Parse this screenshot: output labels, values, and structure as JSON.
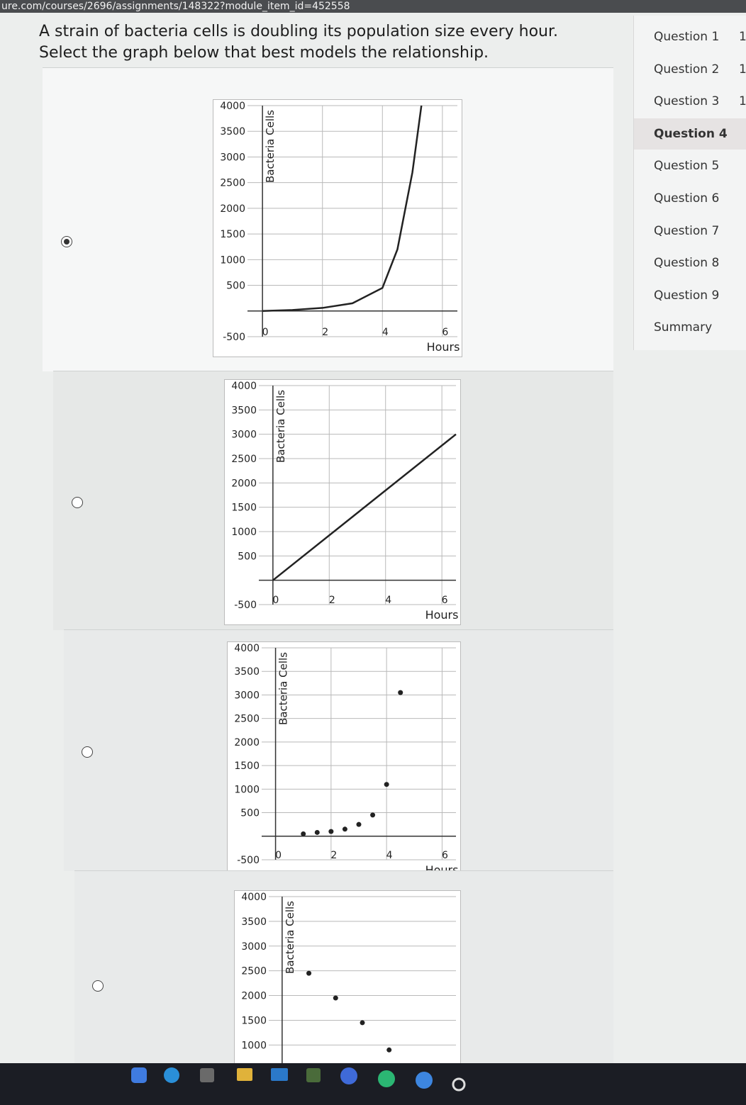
{
  "url": "ure.com/courses/2696/assignments/148322?module_item_id=452558",
  "question": "A strain of bacteria cells is doubling its population size every hour. Select the graph below that best models the relationship.",
  "sidebar": [
    {
      "label": "Question 1",
      "score": "1"
    },
    {
      "label": "Question 2",
      "score": "1"
    },
    {
      "label": "Question 3",
      "score": "1"
    },
    {
      "label": "Question 4",
      "current": true
    },
    {
      "label": "Question 5"
    },
    {
      "label": "Question 6"
    },
    {
      "label": "Question 7"
    },
    {
      "label": "Question 8"
    },
    {
      "label": "Question 9"
    },
    {
      "label": "Summary"
    }
  ],
  "options": [
    {
      "selected": true,
      "chart": {
        "type": "line",
        "x_label": "Hours",
        "y_label": "Bacteria Cells",
        "color": "#222222",
        "xlim": [
          -0.5,
          6.5
        ],
        "ylim": [
          -500,
          4000
        ],
        "xticks": [
          0,
          2,
          4,
          6
        ],
        "yticks": [
          -500,
          500,
          1000,
          1500,
          2000,
          2500,
          3000,
          3500,
          4000
        ],
        "x": [
          0,
          1,
          2,
          3,
          4,
          4.5,
          5,
          5.3
        ],
        "values": [
          0,
          20,
          60,
          150,
          450,
          1200,
          2700,
          4000
        ]
      }
    },
    {
      "selected": false,
      "chart": {
        "type": "line",
        "x_label": "Hours",
        "y_label": "Bacteria Cells",
        "color": "#222222",
        "xlim": [
          -0.5,
          6.5
        ],
        "ylim": [
          -500,
          4000
        ],
        "xticks": [
          0,
          2,
          4,
          6
        ],
        "yticks": [
          -500,
          500,
          1000,
          1500,
          2000,
          2500,
          3000,
          3500,
          4000
        ],
        "x": [
          0,
          6.5
        ],
        "values": [
          0,
          3000
        ]
      }
    },
    {
      "selected": false,
      "chart": {
        "type": "scatter",
        "x_label": "Hours",
        "y_label": "Bacteria Cells",
        "color": "#222222",
        "xlim": [
          -0.5,
          6.5
        ],
        "ylim": [
          -500,
          4000
        ],
        "xticks": [
          0,
          2,
          4,
          6
        ],
        "yticks": [
          -500,
          500,
          1000,
          1500,
          2000,
          2500,
          3000,
          3500,
          4000
        ],
        "x": [
          1,
          1.5,
          2,
          2.5,
          3,
          3.5,
          4,
          4.5
        ],
        "values": [
          50,
          80,
          100,
          150,
          250,
          450,
          1100,
          3050
        ]
      }
    },
    {
      "selected": false,
      "chart": {
        "type": "scatter",
        "y_label": "Bacteria Cells",
        "color": "#222222",
        "xlim": [
          -0.5,
          6.5
        ],
        "ylim": [
          -500,
          4000
        ],
        "yticks": [
          1000,
          1500,
          2000,
          2500,
          3000,
          3500,
          4000
        ],
        "x": [
          1,
          2,
          3,
          4
        ],
        "values": [
          2450,
          1950,
          1450,
          900
        ]
      }
    }
  ]
}
